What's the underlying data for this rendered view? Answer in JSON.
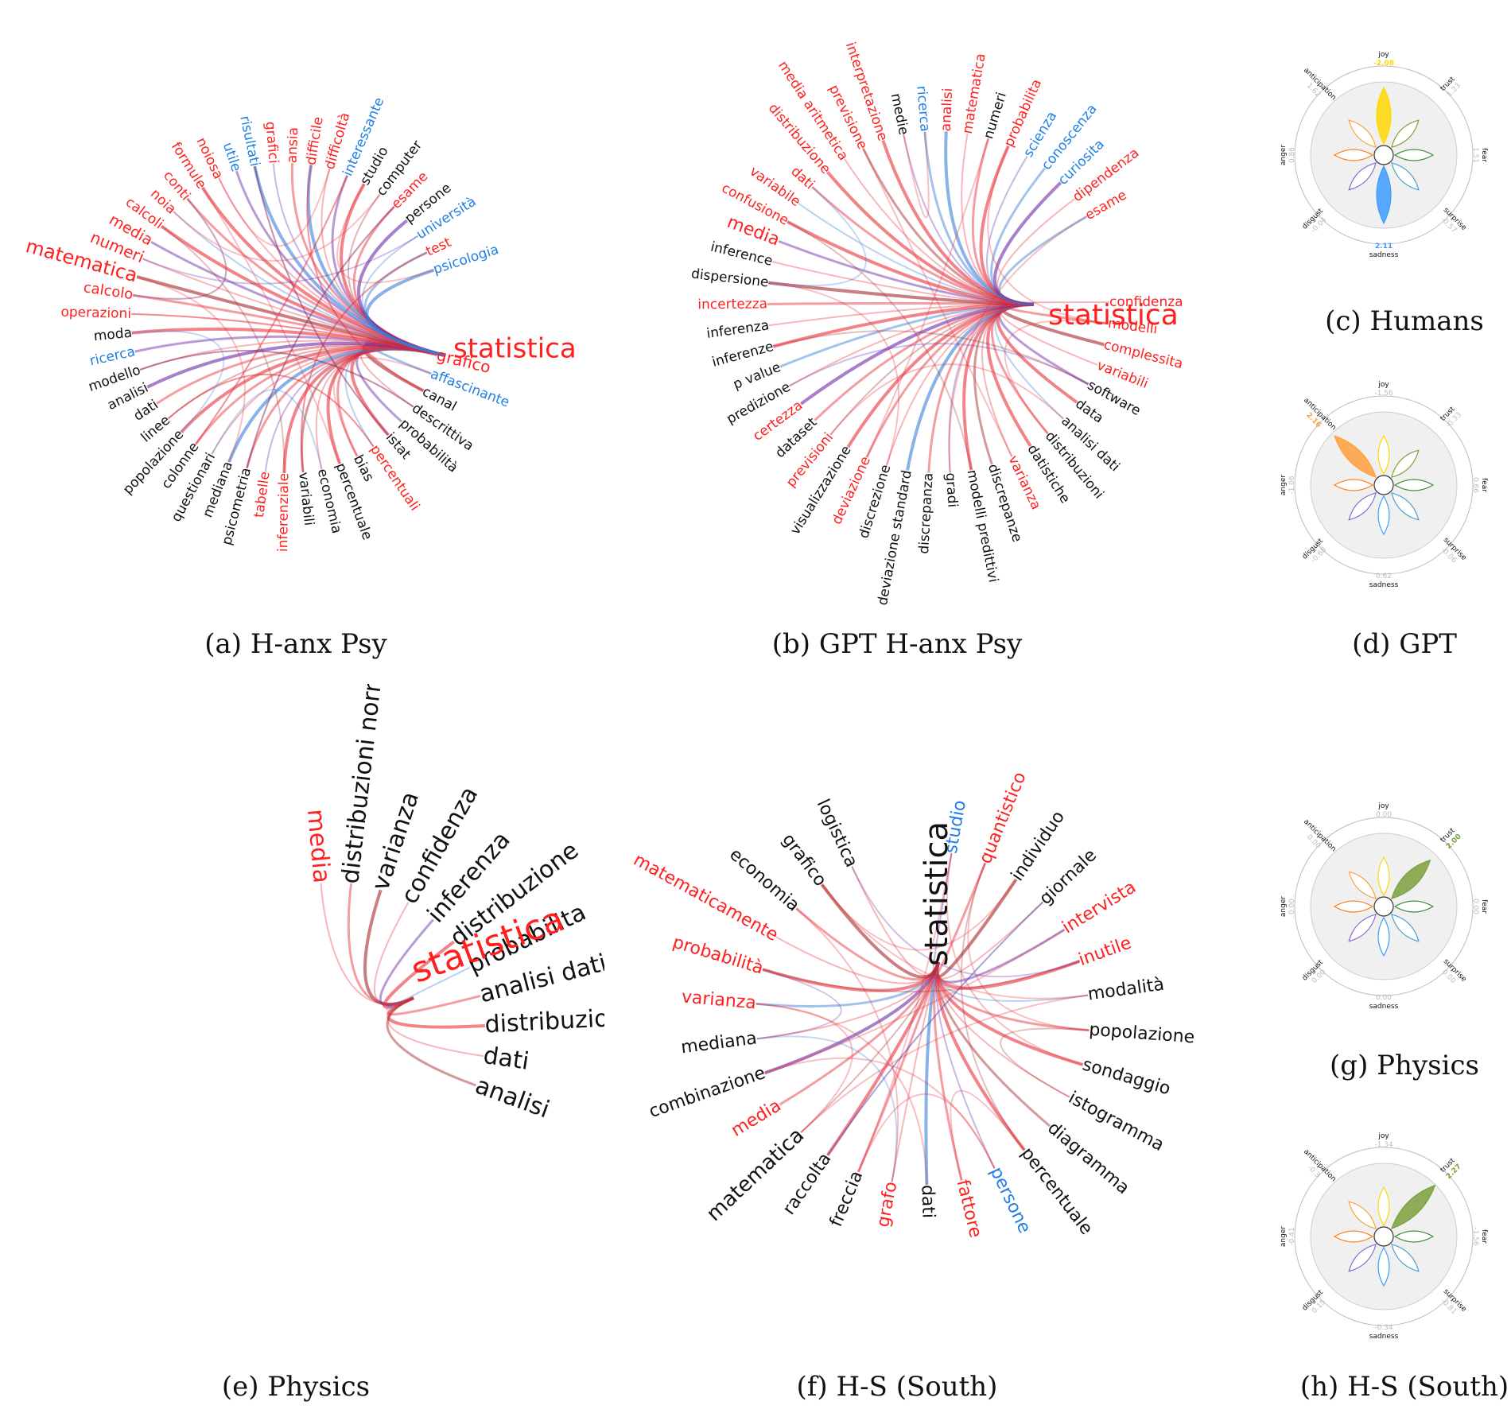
{
  "colors": {
    "negative": "#ff1f1f",
    "positive": "#1e7fe6",
    "neutral": "#111111",
    "link_red": "#e8303a",
    "link_dark": "#a52a2a",
    "link_purple": "#6a2ca8",
    "link_blue": "#3a7fd8",
    "disk": "#f0f0f0",
    "joy": "#ffd700",
    "trust": "#7aa03c",
    "fear": "#3c8c3c",
    "surprise": "#4aa0d0",
    "sadness": "#3c9cff",
    "disgust": "#8a6acd",
    "anger": "#ff7f1e",
    "anticipation": "#ff9f3c"
  },
  "panels": {
    "a": {
      "caption": "(a) H-anx Psy",
      "center": {
        "text": "statistica",
        "class": "negative"
      },
      "words": [
        {
          "text": "grafico",
          "class": "negative"
        },
        {
          "text": "affascinante",
          "class": "positive"
        },
        {
          "text": "canal",
          "class": "neutral"
        },
        {
          "text": "descrittiva",
          "class": "neutral"
        },
        {
          "text": "probabilità",
          "class": "neutral"
        },
        {
          "text": "istat",
          "class": "neutral"
        },
        {
          "text": "percentuali",
          "class": "negative"
        },
        {
          "text": "bias",
          "class": "neutral"
        },
        {
          "text": "percentuale",
          "class": "neutral"
        },
        {
          "text": "economia",
          "class": "neutral"
        },
        {
          "text": "variabili",
          "class": "neutral"
        },
        {
          "text": "inferenziale",
          "class": "negative"
        },
        {
          "text": "tabelle",
          "class": "negative"
        },
        {
          "text": "psicometria",
          "class": "neutral"
        },
        {
          "text": "mediana",
          "class": "neutral"
        },
        {
          "text": "questionari",
          "class": "neutral"
        },
        {
          "text": "colonne",
          "class": "neutral"
        },
        {
          "text": "popolazione",
          "class": "neutral"
        },
        {
          "text": "linee",
          "class": "neutral"
        },
        {
          "text": "dati",
          "class": "neutral"
        },
        {
          "text": "analisi",
          "class": "neutral"
        },
        {
          "text": "modello",
          "class": "neutral"
        },
        {
          "text": "ricerca",
          "class": "positive"
        },
        {
          "text": "moda",
          "class": "neutral"
        },
        {
          "text": "operazioni",
          "class": "negative"
        },
        {
          "text": "calcolo",
          "class": "negative"
        },
        {
          "text": "matematica",
          "class": "negative"
        },
        {
          "text": "numeri",
          "class": "negative"
        },
        {
          "text": "media",
          "class": "negative"
        },
        {
          "text": "calcoli",
          "class": "negative"
        },
        {
          "text": "noia",
          "class": "negative"
        },
        {
          "text": "conti",
          "class": "negative"
        },
        {
          "text": "formule",
          "class": "negative"
        },
        {
          "text": "noiosa",
          "class": "negative"
        },
        {
          "text": "utile",
          "class": "positive"
        },
        {
          "text": "risultati",
          "class": "positive"
        },
        {
          "text": "grafici",
          "class": "negative"
        },
        {
          "text": "ansia",
          "class": "negative"
        },
        {
          "text": "difficile",
          "class": "negative"
        },
        {
          "text": "difficoltà",
          "class": "negative"
        },
        {
          "text": "interessante",
          "class": "positive"
        },
        {
          "text": "studio",
          "class": "neutral"
        },
        {
          "text": "computer",
          "class": "neutral"
        },
        {
          "text": "esame",
          "class": "negative"
        },
        {
          "text": "persone",
          "class": "neutral"
        },
        {
          "text": "università",
          "class": "positive"
        },
        {
          "text": "test",
          "class": "negative"
        },
        {
          "text": "psicologia",
          "class": "positive"
        }
      ]
    },
    "b": {
      "caption": "(b) GPT H-anx Psy",
      "center": {
        "text": "statistica",
        "class": "negative"
      },
      "words": [
        {
          "text": "confidenza",
          "class": "negative"
        },
        {
          "text": "modelli",
          "class": "negative"
        },
        {
          "text": "complessita",
          "class": "negative"
        },
        {
          "text": "variabili",
          "class": "negative"
        },
        {
          "text": "software",
          "class": "neutral"
        },
        {
          "text": "data",
          "class": "neutral"
        },
        {
          "text": "analisi dati",
          "class": "neutral"
        },
        {
          "text": "distribuzioni",
          "class": "neutral"
        },
        {
          "text": "datistiche",
          "class": "neutral"
        },
        {
          "text": "varianza",
          "class": "negative"
        },
        {
          "text": "discrepanze",
          "class": "neutral"
        },
        {
          "text": "modelli predittivi",
          "class": "neutral"
        },
        {
          "text": "gradi",
          "class": "neutral"
        },
        {
          "text": "discrepanza",
          "class": "neutral"
        },
        {
          "text": "deviazione standard",
          "class": "neutral"
        },
        {
          "text": "discrezione",
          "class": "neutral"
        },
        {
          "text": "deviazione",
          "class": "negative"
        },
        {
          "text": "visualizzazione",
          "class": "neutral"
        },
        {
          "text": "previsioni",
          "class": "negative"
        },
        {
          "text": "dataset",
          "class": "neutral"
        },
        {
          "text": "certezza",
          "class": "negative"
        },
        {
          "text": "predizione",
          "class": "neutral"
        },
        {
          "text": "p value",
          "class": "neutral"
        },
        {
          "text": "inferenze",
          "class": "neutral"
        },
        {
          "text": "inferenza",
          "class": "neutral"
        },
        {
          "text": "incertezza",
          "class": "negative"
        },
        {
          "text": "dispersione",
          "class": "neutral"
        },
        {
          "text": "inference",
          "class": "neutral"
        },
        {
          "text": "media",
          "class": "negative"
        },
        {
          "text": "confusione",
          "class": "negative"
        },
        {
          "text": "variabile",
          "class": "negative"
        },
        {
          "text": "dati",
          "class": "negative"
        },
        {
          "text": "distribuzione",
          "class": "negative"
        },
        {
          "text": "media aritmetica",
          "class": "negative"
        },
        {
          "text": "previsione",
          "class": "negative"
        },
        {
          "text": "interpretazione",
          "class": "negative"
        },
        {
          "text": "medie",
          "class": "neutral"
        },
        {
          "text": "ricerca",
          "class": "positive"
        },
        {
          "text": "analisi",
          "class": "negative"
        },
        {
          "text": "matematica",
          "class": "negative"
        },
        {
          "text": "numeri",
          "class": "neutral"
        },
        {
          "text": "probabilita",
          "class": "negative"
        },
        {
          "text": "scienza",
          "class": "positive"
        },
        {
          "text": "conoscenza",
          "class": "positive"
        },
        {
          "text": "curiosita",
          "class": "positive"
        },
        {
          "text": "dipendenza",
          "class": "negative"
        },
        {
          "text": "esame",
          "class": "negative"
        }
      ]
    },
    "e": {
      "caption": "(e) Physics",
      "center": {
        "text": "statistica",
        "class": "negative"
      },
      "words": [
        {
          "text": "media",
          "class": "negative"
        },
        {
          "text": "distribuzioni normali",
          "class": "neutral"
        },
        {
          "text": "varianza",
          "class": "neutral"
        },
        {
          "text": "confidenza",
          "class": "neutral"
        },
        {
          "text": "inferenza",
          "class": "neutral"
        },
        {
          "text": "distribuzione",
          "class": "neutral"
        },
        {
          "text": "probabilita",
          "class": "neutral"
        },
        {
          "text": "analisi dati",
          "class": "neutral"
        },
        {
          "text": "distribuzioni",
          "class": "neutral"
        },
        {
          "text": "dati",
          "class": "neutral"
        },
        {
          "text": "analisi",
          "class": "neutral"
        }
      ]
    },
    "f": {
      "caption": "(f) H-S (South)",
      "center": {
        "text": "statistica",
        "class": "neutral"
      },
      "words": [
        {
          "text": "studio",
          "class": "positive"
        },
        {
          "text": "quantistico",
          "class": "negative"
        },
        {
          "text": "individuo",
          "class": "neutral"
        },
        {
          "text": "giornale",
          "class": "neutral"
        },
        {
          "text": "intervista",
          "class": "negative"
        },
        {
          "text": "inutile",
          "class": "negative"
        },
        {
          "text": "modalità",
          "class": "neutral"
        },
        {
          "text": "popolazione",
          "class": "neutral"
        },
        {
          "text": "sondaggio",
          "class": "neutral"
        },
        {
          "text": "istogramma",
          "class": "neutral"
        },
        {
          "text": "diagramma",
          "class": "neutral"
        },
        {
          "text": "percentuale",
          "class": "neutral"
        },
        {
          "text": "persone",
          "class": "positive"
        },
        {
          "text": "fattore",
          "class": "negative"
        },
        {
          "text": "dati",
          "class": "neutral"
        },
        {
          "text": "grafo",
          "class": "negative"
        },
        {
          "text": "freccia",
          "class": "neutral"
        },
        {
          "text": "raccolta",
          "class": "neutral"
        },
        {
          "text": "matematica",
          "class": "neutral"
        },
        {
          "text": "media",
          "class": "negative"
        },
        {
          "text": "combinazione",
          "class": "neutral"
        },
        {
          "text": "mediana",
          "class": "neutral"
        },
        {
          "text": "varianza",
          "class": "negative"
        },
        {
          "text": "probabilità",
          "class": "negative"
        },
        {
          "text": "matematicamente",
          "class": "negative"
        },
        {
          "text": "economia",
          "class": "neutral"
        },
        {
          "text": "grafico",
          "class": "neutral"
        },
        {
          "text": "logistica",
          "class": "neutral"
        }
      ]
    }
  },
  "emotions": {
    "labels": [
      "joy",
      "trust",
      "fear",
      "surprise",
      "sadness",
      "disgust",
      "anger",
      "anticipation"
    ],
    "c": {
      "caption": "(c) Humans",
      "values": [
        "-2.08",
        "1.23",
        "1.51",
        "-0.57",
        "2.11",
        "-0.04",
        "0.86",
        "1.62"
      ],
      "scores": [
        -2.08,
        1.23,
        1.51,
        -0.57,
        2.11,
        -0.04,
        0.86,
        1.62
      ],
      "highlight": [
        0,
        4
      ]
    },
    "d": {
      "caption": "(d) GPT",
      "values": [
        "-1.56",
        "-0.33",
        "0.66",
        "-0.06",
        "0.62",
        "-0.68",
        "-1.06",
        "2.16"
      ],
      "scores": [
        -1.56,
        -0.33,
        0.66,
        -0.06,
        0.62,
        -0.68,
        -1.06,
        2.16
      ],
      "highlight": [
        7
      ]
    },
    "g": {
      "caption": "(g) Physics",
      "values": [
        "0.00",
        "2.00",
        "0.00",
        "0.00",
        "0.00",
        "0.00",
        "0.00",
        "0.00"
      ],
      "scores": [
        0,
        2,
        0,
        0,
        0,
        0,
        0,
        0
      ],
      "highlight": [
        1
      ]
    },
    "h": {
      "caption": "(h) H-S (South)",
      "values": [
        "-1.34",
        "2.27",
        "-1.56",
        "-0.81",
        "-0.34",
        "0.15",
        "-0.41",
        "-0.3"
      ],
      "scores": [
        -1.34,
        2.27,
        -1.56,
        -0.81,
        -0.34,
        0.15,
        -0.41,
        -0.3
      ],
      "highlight": [
        1
      ]
    }
  }
}
